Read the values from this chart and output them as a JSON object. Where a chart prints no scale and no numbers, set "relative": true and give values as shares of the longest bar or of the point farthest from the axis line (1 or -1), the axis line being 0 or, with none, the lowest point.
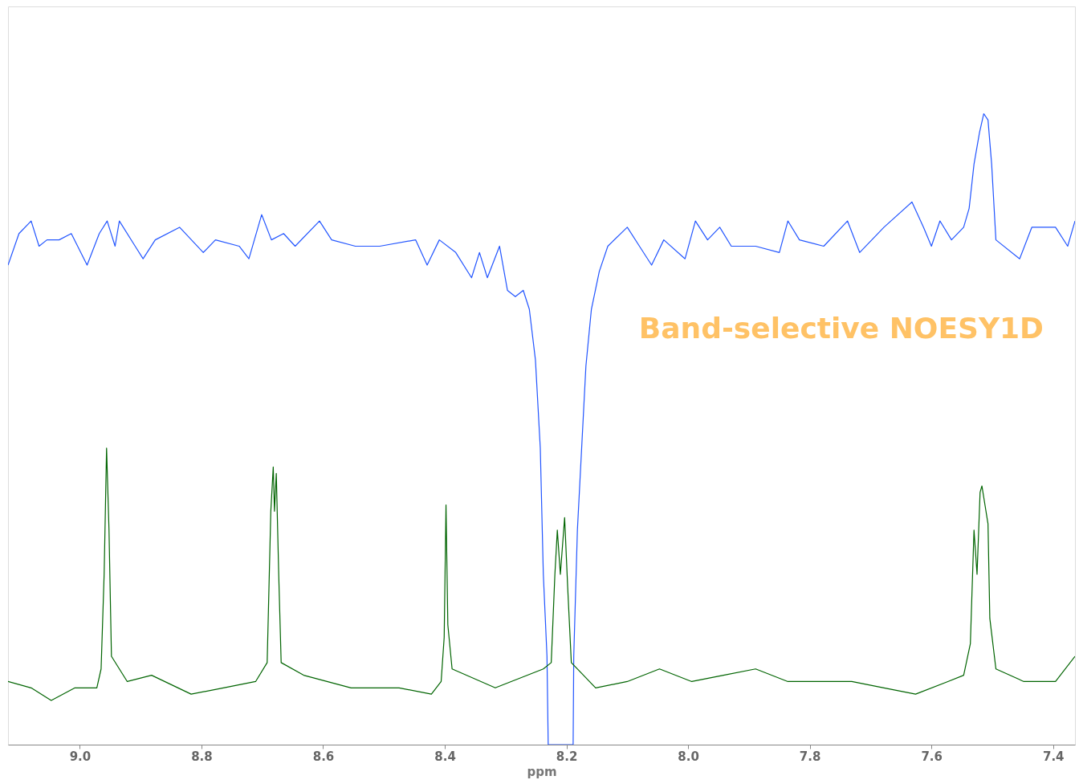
{
  "chart_data": {
    "type": "line",
    "relative": true,
    "xlabel": "ppm",
    "xlim": [
      9.118,
      7.364
    ],
    "xticks": [
      {
        "value": 9.0,
        "label": "9.0"
      },
      {
        "value": 8.8,
        "label": "8.8"
      },
      {
        "value": 8.6,
        "label": "8.6"
      },
      {
        "value": 8.4,
        "label": "8.4"
      },
      {
        "value": 8.2,
        "label": "8.2"
      },
      {
        "value": 8.0,
        "label": "8.0"
      },
      {
        "value": 7.8,
        "label": "7.8"
      },
      {
        "value": 7.6,
        "label": "7.6"
      },
      {
        "value": 7.4,
        "label": "7.4"
      }
    ],
    "grid": false,
    "marker": "none",
    "line_style": "solid",
    "annotations": [
      "Band-selective NOESY1D"
    ],
    "series": [
      {
        "color": "#2255ff",
        "x": [
          9.118,
          9.1,
          9.08,
          9.067,
          9.054,
          9.034,
          9.014,
          8.988,
          8.968,
          8.955,
          8.942,
          8.935,
          8.909,
          8.896,
          8.876,
          8.836,
          8.797,
          8.777,
          8.738,
          8.722,
          8.701,
          8.685,
          8.665,
          8.646,
          8.606,
          8.586,
          8.547,
          8.507,
          8.448,
          8.429,
          8.409,
          8.382,
          8.356,
          8.343,
          8.33,
          8.31,
          8.297,
          8.284,
          8.271,
          8.261,
          8.251,
          8.243,
          8.238,
          8.232,
          8.23,
          8.189,
          8.188,
          8.182,
          8.175,
          8.168,
          8.159,
          8.146,
          8.132,
          8.1,
          8.08,
          8.06,
          8.04,
          8.005,
          7.988,
          7.968,
          7.948,
          7.929,
          7.889,
          7.85,
          7.836,
          7.817,
          7.777,
          7.738,
          7.718,
          7.678,
          7.632,
          7.613,
          7.6,
          7.586,
          7.567,
          7.547,
          7.538,
          7.53,
          7.521,
          7.514,
          7.507,
          7.501,
          7.494,
          7.455,
          7.435,
          7.396,
          7.376,
          7.364
        ],
        "values": [
          0.76,
          0.81,
          0.83,
          0.79,
          0.8,
          0.8,
          0.81,
          0.76,
          0.81,
          0.83,
          0.79,
          0.83,
          0.79,
          0.77,
          0.8,
          0.82,
          0.78,
          0.8,
          0.79,
          0.77,
          0.84,
          0.8,
          0.81,
          0.79,
          0.83,
          0.8,
          0.79,
          0.79,
          0.8,
          0.76,
          0.8,
          0.78,
          0.74,
          0.78,
          0.74,
          0.79,
          0.72,
          0.71,
          0.72,
          0.69,
          0.61,
          0.47,
          0.27,
          0.14,
          0.0,
          0.0,
          0.14,
          0.34,
          0.47,
          0.6,
          0.69,
          0.75,
          0.79,
          0.82,
          0.79,
          0.76,
          0.8,
          0.77,
          0.83,
          0.8,
          0.82,
          0.79,
          0.79,
          0.78,
          0.83,
          0.8,
          0.79,
          0.83,
          0.78,
          0.82,
          0.86,
          0.82,
          0.79,
          0.83,
          0.8,
          0.82,
          0.85,
          0.92,
          0.97,
          1.0,
          0.99,
          0.92,
          0.8,
          0.77,
          0.82,
          0.82,
          0.79,
          0.83
        ]
      },
      {
        "color": "#006400",
        "x": [
          9.118,
          9.08,
          9.047,
          9.008,
          8.972,
          8.965,
          8.96,
          8.956,
          8.952,
          8.948,
          8.922,
          8.882,
          8.817,
          8.764,
          8.711,
          8.692,
          8.686,
          8.682,
          8.68,
          8.677,
          8.673,
          8.669,
          8.632,
          8.554,
          8.475,
          8.422,
          8.406,
          8.401,
          8.398,
          8.395,
          8.388,
          8.317,
          8.238,
          8.225,
          8.219,
          8.215,
          8.21,
          8.203,
          8.198,
          8.192,
          8.152,
          8.1,
          8.047,
          7.994,
          7.942,
          7.889,
          7.836,
          7.784,
          7.731,
          7.678,
          7.626,
          7.573,
          7.547,
          7.536,
          7.53,
          7.525,
          7.52,
          7.517,
          7.512,
          7.507,
          7.504,
          7.494,
          7.448,
          7.396,
          7.364
        ],
        "values": [
          0.1,
          0.09,
          0.07,
          0.09,
          0.09,
          0.12,
          0.27,
          0.47,
          0.34,
          0.14,
          0.1,
          0.11,
          0.08,
          0.09,
          0.1,
          0.13,
          0.37,
          0.44,
          0.37,
          0.43,
          0.27,
          0.13,
          0.11,
          0.09,
          0.09,
          0.08,
          0.1,
          0.17,
          0.38,
          0.19,
          0.12,
          0.09,
          0.12,
          0.13,
          0.27,
          0.34,
          0.27,
          0.36,
          0.25,
          0.13,
          0.09,
          0.1,
          0.12,
          0.1,
          0.11,
          0.12,
          0.1,
          0.1,
          0.1,
          0.09,
          0.08,
          0.1,
          0.11,
          0.16,
          0.34,
          0.27,
          0.4,
          0.41,
          0.38,
          0.35,
          0.2,
          0.12,
          0.1,
          0.1,
          0.14
        ]
      }
    ]
  }
}
